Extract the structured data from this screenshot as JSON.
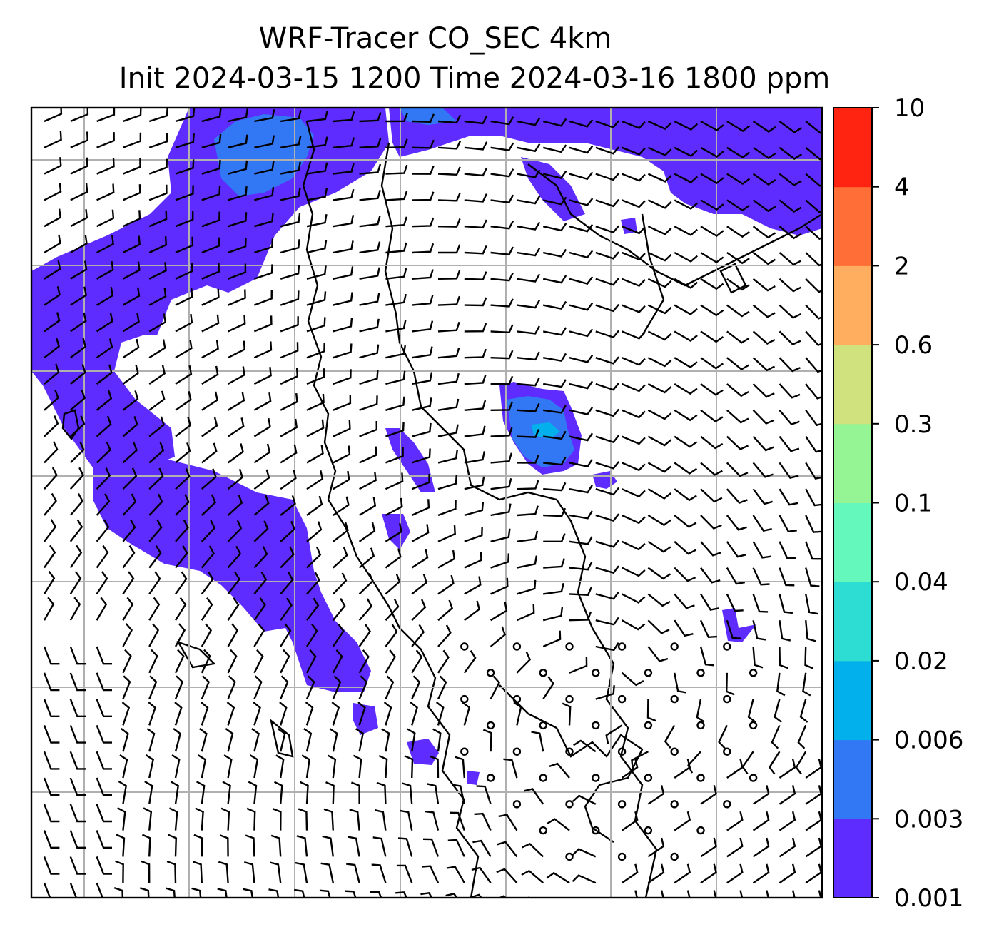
{
  "title": {
    "line1": "WRF-Tracer CO_SEC 4km",
    "line2": "Init 2024-03-15 1200 Time 2024-03-16 1800 ppm"
  },
  "map": {
    "variable": "CO_SEC",
    "units": "ppm",
    "grid_lines": true,
    "overlay": "wind barbs",
    "background_color": "#ffffff",
    "coastline_color": "#000000"
  },
  "colorbar": {
    "levels": [
      "0.001",
      "0.003",
      "0.006",
      "0.02",
      "0.04",
      "0.1",
      "0.3",
      "0.6",
      "2",
      "4",
      "10"
    ],
    "colors": [
      "#5f2cff",
      "#3278f5",
      "#02b0ec",
      "#2ddcd2",
      "#64f8bc",
      "#95f595",
      "#cfe27e",
      "#feae5e",
      "#ff6e36",
      "#ff2412"
    ]
  }
}
